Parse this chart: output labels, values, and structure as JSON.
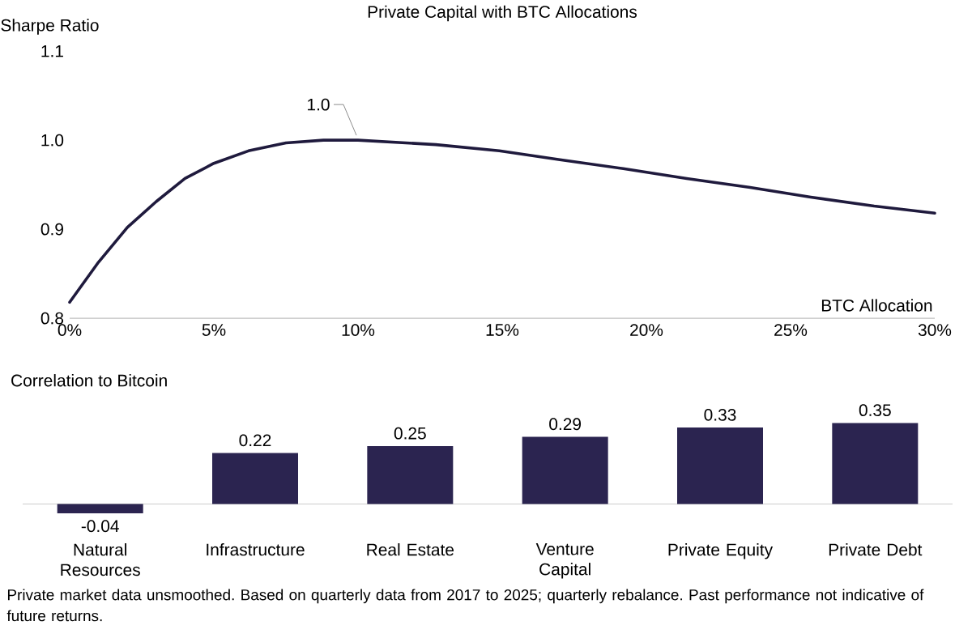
{
  "chart_data": [
    {
      "type": "line",
      "title": "Private Capital with BTC Allocations",
      "ylabel": "Sharpe Ratio",
      "xlabel": "BTC Allocation",
      "color": "#1f1a3d",
      "x": [
        0,
        1,
        2,
        3,
        4,
        5,
        6.2,
        7.5,
        8.8,
        10,
        12.7,
        14.9,
        17,
        19.2,
        21.4,
        23.6,
        25.7,
        27.9,
        30
      ],
      "values": [
        0.818,
        0.863,
        0.902,
        0.931,
        0.957,
        0.974,
        0.988,
        0.997,
        1.0,
        1.0,
        0.995,
        0.988,
        0.978,
        0.968,
        0.957,
        0.947,
        0.936,
        0.926,
        0.918
      ],
      "xlim": [
        0,
        30
      ],
      "ylim": [
        0.8,
        1.1
      ],
      "xticks": [
        {
          "value": 0,
          "label": "0%"
        },
        {
          "value": 5,
          "label": "5%"
        },
        {
          "value": 10,
          "label": "10%"
        },
        {
          "value": 15,
          "label": "15%"
        },
        {
          "value": 20,
          "label": "20%"
        },
        {
          "value": 25,
          "label": "25%"
        },
        {
          "value": 30,
          "label": "30%"
        }
      ],
      "yticks": [
        0.8,
        0.9,
        {
          "value": 1.0,
          "label": "1.0"
        },
        1.1
      ],
      "annotations": [
        {
          "text": "1.0",
          "x": 10,
          "y": 1.0
        }
      ]
    },
    {
      "type": "bar",
      "title": "Correlation to Bitcoin",
      "color": "#2b2450",
      "categories": [
        "Natural Resources",
        "Infrastructure",
        "Real Estate",
        "Venture Capital",
        "Private Equity",
        "Private Debt"
      ],
      "values": [
        -0.04,
        0.22,
        0.25,
        0.29,
        0.33,
        0.35
      ],
      "data_labels": true,
      "tick_labels": "x",
      "annotations": [
        "Private market data unsmoothed. Based on quarterly data from 2017 to 2025; quarterly rebalance. Past performance not indicative of future returns."
      ]
    }
  ]
}
